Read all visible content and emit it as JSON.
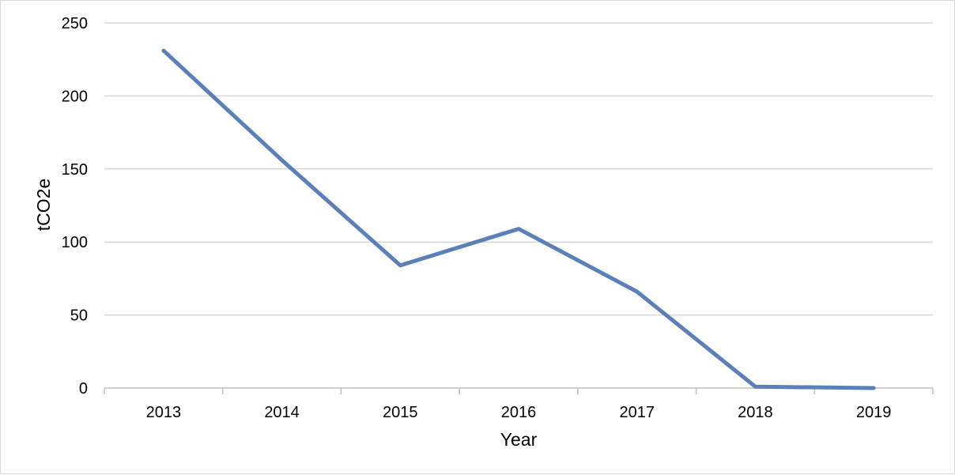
{
  "chart_data": {
    "type": "line",
    "title": "",
    "xlabel": "Year",
    "ylabel": "tCO2e",
    "categories": [
      "2013",
      "2014",
      "2015",
      "2016",
      "2017",
      "2018",
      "2019"
    ],
    "series": [
      {
        "values": [
          231,
          156,
          84,
          109,
          66,
          1,
          0
        ]
      }
    ],
    "ylim": [
      0,
      250
    ],
    "yticks": [
      0,
      50,
      100,
      150,
      200,
      250
    ],
    "ytick_labels": [
      "0",
      "50",
      "100",
      "150",
      "200",
      "250"
    ],
    "grid": true,
    "legend": "none",
    "colors": {
      "line": "#5b7fb8",
      "grid": "#d9d9d9",
      "axis": "#bfbfbf"
    }
  }
}
